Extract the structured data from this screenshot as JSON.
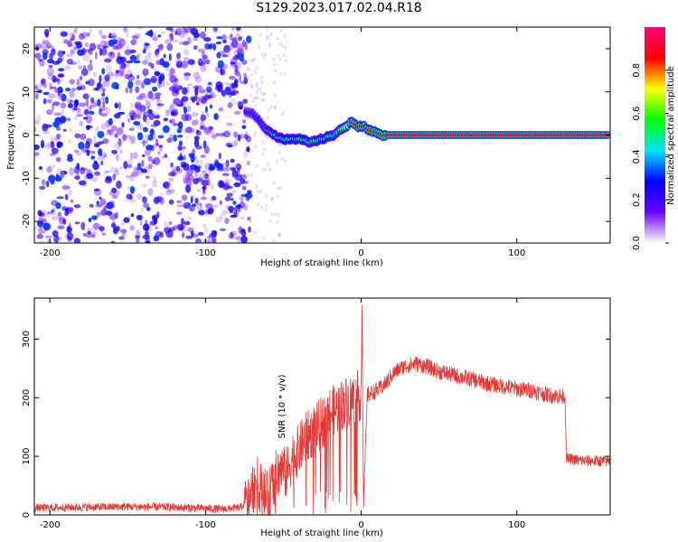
{
  "title": "S129.2023.017.02.04.R18",
  "colors": {
    "snr_line": "#e53935",
    "colormap": [
      "#ffffff",
      "#6a00ff",
      "#0000ff",
      "#00e5ff",
      "#00ff00",
      "#ffff00",
      "#ff0000",
      "#ff007f"
    ]
  },
  "chart_data": [
    {
      "type": "heatmap",
      "title": "",
      "xlabel": "Height of straight line (km)",
      "ylabel": "Frequency (Hz)",
      "xlim": [
        -210,
        160
      ],
      "ylim": [
        -25,
        25
      ],
      "xticks": [
        -200,
        -100,
        0,
        100
      ],
      "yticks": [
        -20,
        -10,
        0,
        10,
        20
      ],
      "colorbar": {
        "label": "Normalized spectral amplitude",
        "range": [
          0.0,
          1.0
        ],
        "ticks": [
          0.0,
          0.2,
          0.4,
          0.6,
          0.8
        ]
      },
      "ridge": {
        "x": [
          -74,
          -70,
          -66,
          -62,
          -58,
          -54,
          -50,
          -46,
          -42,
          -38,
          -34,
          -30,
          -26,
          -22,
          -18,
          -14,
          -10,
          -6,
          -2,
          2,
          6,
          10,
          14,
          160
        ],
        "y": [
          5.5,
          5,
          3.5,
          1.5,
          0.5,
          -0.5,
          -1,
          -1,
          -1,
          -1,
          -1.5,
          -1.5,
          -1,
          -0.5,
          0,
          1,
          2,
          3,
          2,
          2,
          1,
          0.5,
          0,
          0
        ],
        "amplitude": [
          0.25,
          0.3,
          0.3,
          0.35,
          0.4,
          0.45,
          0.5,
          0.5,
          0.5,
          0.5,
          0.55,
          0.55,
          0.5,
          0.5,
          0.55,
          0.6,
          0.7,
          0.85,
          0.85,
          0.85,
          0.85,
          0.85,
          0.9,
          0.9
        ]
      }
    },
    {
      "type": "line",
      "title": "",
      "xlabel": "Height of straight line (km)",
      "ylabel": "SNR (10 * v/v)",
      "xlim": [
        -210,
        160
      ],
      "ylim": [
        0,
        370
      ],
      "xticks": [
        -200,
        -100,
        0,
        100
      ],
      "yticks": [
        0,
        100,
        200,
        300
      ],
      "series": [
        {
          "x": [
            -210,
            -180,
            -150,
            -120,
            -90,
            -78,
            -72,
            -68,
            -64,
            -60,
            -56,
            -52,
            -48,
            -44,
            -40,
            -36,
            -32,
            -28,
            -24,
            -20,
            -16,
            -12,
            -8,
            -4,
            0,
            0.5,
            1.5,
            4,
            8,
            12,
            16,
            20,
            25,
            30,
            35,
            40,
            45,
            50,
            60,
            70,
            80,
            90,
            100,
            110,
            120,
            130,
            131,
            132,
            135,
            140,
            150,
            160
          ],
          "y": [
            12,
            13,
            14,
            13,
            10,
            12,
            25,
            60,
            45,
            30,
            60,
            80,
            70,
            100,
            110,
            130,
            140,
            150,
            160,
            175,
            180,
            190,
            195,
            200,
            205,
            360,
            20,
            205,
            210,
            215,
            225,
            240,
            250,
            255,
            258,
            255,
            250,
            245,
            238,
            232,
            225,
            220,
            215,
            212,
            205,
            202,
            200,
            95,
            95,
            93,
            92,
            92
          ]
        }
      ]
    }
  ]
}
